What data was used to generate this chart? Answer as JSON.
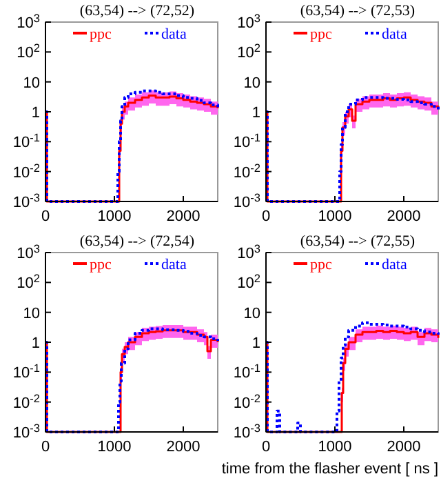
{
  "chart_data": [
    {
      "type": "step",
      "title": "(63,54) --> (72,52)",
      "log": true,
      "legend": "top",
      "xlim": [
        0,
        2500
      ],
      "xticks": [
        0,
        1000,
        2000
      ],
      "ylim": [
        0.001,
        1000
      ],
      "yticks": [
        {
          "value": 0.001,
          "label": "10$^{-3}$"
        },
        {
          "value": 0.01,
          "label": "10$^{-2}$"
        },
        {
          "value": 0.1,
          "label": "10$^{-1}$"
        },
        {
          "value": 1,
          "label": "1"
        },
        {
          "value": 10,
          "label": "10"
        },
        {
          "value": 100,
          "label": "10$^{2}$"
        },
        {
          "value": 1000,
          "label": "10$^{3}$"
        }
      ],
      "series": [
        {
          "name": "ppc",
          "color": "#ff0000",
          "line_style": "solid",
          "x": [
            0,
            20,
            1050,
            1070,
            1090,
            1110,
            1150,
            1200,
            1300,
            1400,
            1500,
            1600,
            1700,
            1800,
            1900,
            2000,
            2100,
            2200,
            2300,
            2400,
            2500
          ],
          "values": [
            1,
            0.001,
            0.001,
            0.05,
            0.4,
            1,
            1.5,
            2,
            2.5,
            3,
            3.5,
            3,
            3,
            3.2,
            2.8,
            2.5,
            2.2,
            2,
            1.8,
            1.5,
            1.3
          ],
          "lower": [
            1,
            0.001,
            0.001,
            0.03,
            0.2,
            0.55,
            0.8,
            1.1,
            1.4,
            1.6,
            1.9,
            1.6,
            1.6,
            1.8,
            1.5,
            1.4,
            1.2,
            1.1,
            1,
            0.8,
            0.7
          ],
          "upper": [
            1,
            0.001,
            0.001,
            0.08,
            0.6,
            1.5,
            2.2,
            3,
            3.8,
            4.5,
            5.2,
            4.5,
            4.5,
            4.8,
            4.2,
            3.8,
            3.3,
            3,
            2.7,
            2.2,
            2
          ]
        },
        {
          "name": "data",
          "color": "#0000ff",
          "line_style": "dotted",
          "x": [
            0,
            20,
            1030,
            1050,
            1070,
            1090,
            1110,
            1150,
            1200,
            1300,
            1400,
            1500,
            1600,
            1700,
            1800,
            1900,
            2000,
            2100,
            2200,
            2300,
            2400,
            2500
          ],
          "values": [
            1,
            0.001,
            0.001,
            0.01,
            0.1,
            0.5,
            1.5,
            3,
            4,
            4.5,
            5,
            5,
            4.5,
            4,
            4,
            3.5,
            3,
            2.8,
            2.4,
            2,
            1.7,
            1.3
          ]
        }
      ]
    },
    {
      "type": "step",
      "title": "(63,54) --> (72,53)",
      "log": true,
      "legend": "top",
      "xlim": [
        0,
        2500
      ],
      "xticks": [
        0,
        1000,
        2000
      ],
      "ylim": [
        0.001,
        1000
      ],
      "yticks": [
        {
          "value": 0.001,
          "label": "10$^{-3}$"
        },
        {
          "value": 0.01,
          "label": "10$^{-2}$"
        },
        {
          "value": 0.1,
          "label": "10$^{-1}$"
        },
        {
          "value": 1,
          "label": "1"
        },
        {
          "value": 10,
          "label": "10"
        },
        {
          "value": 100,
          "label": "10$^{2}$"
        },
        {
          "value": 1000,
          "label": "10$^{3}$"
        }
      ],
      "series": [
        {
          "name": "ppc",
          "color": "#ff0000",
          "line_style": "solid",
          "x": [
            0,
            20,
            1070,
            1090,
            1110,
            1150,
            1200,
            1250,
            1300,
            1400,
            1500,
            1600,
            1700,
            1800,
            1900,
            2000,
            2100,
            2200,
            2300,
            2400,
            2500
          ],
          "values": [
            1,
            0.001,
            0.001,
            0.05,
            0.3,
            0.7,
            1.2,
            0.5,
            1.8,
            2.2,
            2.5,
            2.5,
            2.8,
            2.5,
            2.8,
            3,
            2.5,
            2.2,
            2,
            1.5,
            1.2
          ],
          "lower": [
            1,
            0.001,
            0.001,
            0.03,
            0.16,
            0.4,
            0.65,
            0.28,
            1,
            1.2,
            1.4,
            1.4,
            1.5,
            1.4,
            1.5,
            1.6,
            1.4,
            1.2,
            1.1,
            0.8,
            0.65
          ],
          "upper": [
            1,
            0.001,
            0.001,
            0.08,
            0.45,
            1,
            1.8,
            0.75,
            2.7,
            3.3,
            3.8,
            3.8,
            4.2,
            3.8,
            4.2,
            4.5,
            3.8,
            3.3,
            3,
            2.2,
            1.8
          ]
        },
        {
          "name": "data",
          "color": "#0000ff",
          "line_style": "dotted",
          "x": [
            0,
            20,
            1050,
            1070,
            1090,
            1110,
            1150,
            1200,
            1300,
            1400,
            1500,
            1600,
            1700,
            1800,
            1900,
            2000,
            2100,
            2200,
            2300,
            2400,
            2500
          ],
          "values": [
            1,
            0.001,
            0.001,
            0.01,
            0.08,
            0.3,
            1,
            1.8,
            2.5,
            3,
            3,
            3,
            2.8,
            2.8,
            2.6,
            2.5,
            2.2,
            2,
            1.8,
            1.5,
            1.2
          ]
        }
      ]
    },
    {
      "type": "step",
      "title": "(63,54) --> (72,54)",
      "log": true,
      "legend": "top",
      "xlim": [
        0,
        2500
      ],
      "xticks": [
        0,
        1000,
        2000
      ],
      "ylim": [
        0.001,
        1000
      ],
      "yticks": [
        {
          "value": 0.001,
          "label": "10$^{-3}$"
        },
        {
          "value": 0.01,
          "label": "10$^{-2}$"
        },
        {
          "value": 0.1,
          "label": "10$^{-1}$"
        },
        {
          "value": 1,
          "label": "1"
        },
        {
          "value": 10,
          "label": "10"
        },
        {
          "value": 100,
          "label": "10$^{2}$"
        },
        {
          "value": 1000,
          "label": "10$^{3}$"
        }
      ],
      "series": [
        {
          "name": "ppc",
          "color": "#ff0000",
          "line_style": "solid",
          "x": [
            0,
            20,
            1070,
            1090,
            1110,
            1150,
            1200,
            1300,
            1400,
            1500,
            1600,
            1700,
            1800,
            1900,
            2000,
            2100,
            2200,
            2300,
            2350,
            2400,
            2500
          ],
          "values": [
            1,
            0.001,
            0.001,
            0.1,
            0.4,
            0.7,
            1,
            1.5,
            2,
            2.2,
            2.3,
            2.5,
            2.5,
            2.5,
            2.2,
            2.2,
            1.8,
            1.5,
            0.5,
            1.2,
            1
          ],
          "lower": [
            1,
            0.001,
            0.001,
            0.05,
            0.22,
            0.4,
            0.55,
            0.8,
            1.1,
            1.2,
            1.3,
            1.4,
            1.4,
            1.4,
            1.2,
            1.2,
            1,
            0.8,
            0.28,
            0.65,
            0.55
          ],
          "upper": [
            1,
            0.001,
            0.001,
            0.15,
            0.6,
            1,
            1.5,
            2.2,
            3,
            3.3,
            3.5,
            3.8,
            3.8,
            3.8,
            3.3,
            3.3,
            2.7,
            2.2,
            0.75,
            1.8,
            1.5
          ]
        },
        {
          "name": "data",
          "color": "#0000ff",
          "line_style": "dotted",
          "x": [
            0,
            20,
            1040,
            1060,
            1080,
            1100,
            1150,
            1200,
            1300,
            1400,
            1500,
            1600,
            1700,
            1800,
            1900,
            2000,
            2100,
            2200,
            2300,
            2400,
            2500
          ],
          "values": [
            1,
            0.001,
            0.001,
            0.01,
            0.05,
            0.2,
            0.6,
            1.2,
            2,
            2.5,
            2.8,
            2.8,
            2.6,
            2.6,
            2.5,
            2.3,
            2,
            1.7,
            1.5,
            1.3,
            1.1
          ]
        }
      ]
    },
    {
      "type": "step",
      "title": "(63,54) --> (72,55)",
      "log": true,
      "legend": "top",
      "xlim": [
        0,
        2500
      ],
      "xticks": [
        0,
        1000,
        2000
      ],
      "ylim": [
        0.001,
        1000
      ],
      "yticks": [
        {
          "value": 0.001,
          "label": "10$^{-3}$"
        },
        {
          "value": 0.01,
          "label": "10$^{-2}$"
        },
        {
          "value": 0.1,
          "label": "10$^{-1}$"
        },
        {
          "value": 1,
          "label": "1"
        },
        {
          "value": 10,
          "label": "10"
        },
        {
          "value": 100,
          "label": "10$^{2}$"
        },
        {
          "value": 1000,
          "label": "10$^{3}$"
        }
      ],
      "xlabel": "time from the flasher event [ ns ]",
      "series": [
        {
          "name": "ppc",
          "color": "#ff0000",
          "line_style": "solid",
          "x": [
            0,
            20,
            1080,
            1100,
            1120,
            1150,
            1200,
            1300,
            1400,
            1500,
            1600,
            1700,
            1800,
            1900,
            2000,
            2100,
            2200,
            2300,
            2400,
            2500
          ],
          "values": [
            1,
            0.001,
            0.001,
            0.02,
            0.2,
            0.6,
            1,
            1.8,
            2.2,
            2.2,
            2.4,
            2.2,
            2.4,
            2.2,
            2,
            2.2,
            1.5,
            2,
            1.8,
            1.4
          ],
          "lower": [
            1,
            0.001,
            0.001,
            0.01,
            0.11,
            0.33,
            0.55,
            1,
            1.2,
            1.2,
            1.3,
            1.2,
            1.3,
            1.2,
            1.1,
            1.2,
            0.8,
            1.1,
            1,
            0.8
          ],
          "upper": [
            1,
            0.001,
            0.001,
            0.03,
            0.3,
            0.9,
            1.5,
            2.7,
            3.3,
            3.3,
            3.6,
            3.3,
            3.6,
            3.3,
            3,
            3.3,
            2.2,
            3,
            2.7,
            2.1
          ]
        },
        {
          "name": "data",
          "color": "#0000ff",
          "line_style": "dotted",
          "x": [
            0,
            20,
            160,
            200,
            460,
            500,
            1000,
            1030,
            1060,
            1090,
            1120,
            1150,
            1200,
            1300,
            1400,
            1500,
            1600,
            1700,
            1800,
            1900,
            2000,
            2100,
            2200,
            2300,
            2400,
            2500
          ],
          "values": [
            1,
            0.001,
            0.005,
            0.001,
            0.002,
            0.001,
            0.001,
            0.005,
            0.05,
            0.3,
            0.8,
            1.5,
            2.5,
            3.5,
            4.5,
            4,
            4,
            3.8,
            3.5,
            3.5,
            3.2,
            2.8,
            2.5,
            2.2,
            2,
            1.8
          ]
        }
      ]
    }
  ]
}
